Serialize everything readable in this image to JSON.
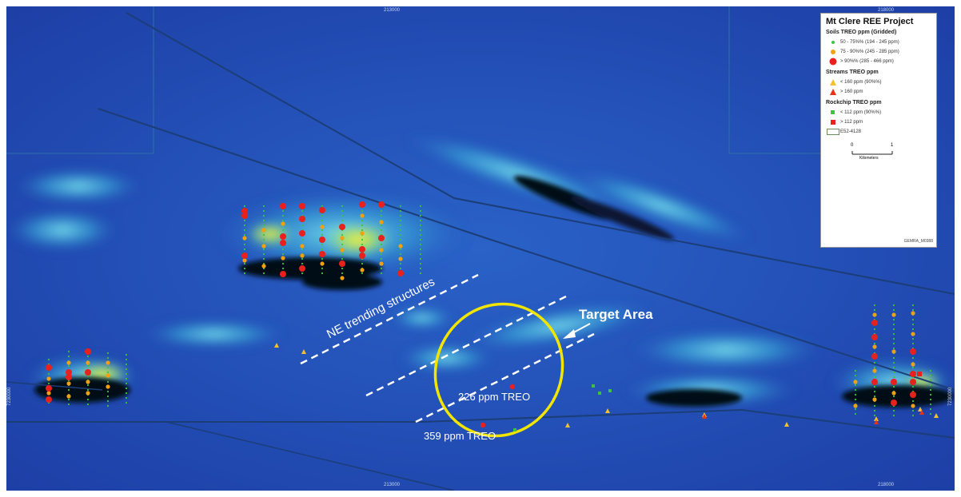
{
  "map": {
    "grid_ticks": {
      "top": [
        "213000",
        "218000"
      ],
      "bottom": [
        "213000",
        "218000"
      ],
      "left": "7230000",
      "right": "7230000"
    },
    "labels": {
      "structures": "NE trending structures",
      "target": "Target Area",
      "treo_226": "226 ppm TREO",
      "treo_359": "359 ppm TREO"
    },
    "colors": {
      "background": "#1e49b2",
      "target_ellipse": "#f2e600",
      "dashed_lines": "#ffffff",
      "soil_green": "#3cc43c",
      "soil_orange": "#f0a010",
      "soil_red": "#e8211c",
      "stream_yellow": "#f2c12e",
      "stream_red": "#e8321c",
      "rockchip_green": "#3cc43c",
      "rockchip_red": "#e8211c"
    }
  },
  "legend": {
    "title": "Mt Clere REE Project",
    "soils": {
      "heading": "Soils TREO ppm (Gridded)",
      "items": [
        {
          "label": "50 - 75%% (194 - 245 ppm)",
          "icon": "small-green-dot",
          "color": "#3cc43c"
        },
        {
          "label": "75 - 90%% (245 - 285 ppm)",
          "icon": "orange-dot",
          "color": "#f0a010"
        },
        {
          "label": "> 90%% (285 - 466 ppm)",
          "icon": "large-red-dot",
          "color": "#e8211c"
        }
      ]
    },
    "streams": {
      "heading": "Streams TREO ppm",
      "items": [
        {
          "label": "< 160 ppm (90%%)",
          "icon": "yellow-triangle",
          "color": "#f2c12e"
        },
        {
          "label": "> 160 ppm",
          "icon": "red-triangle",
          "color": "#e8321c"
        }
      ]
    },
    "rockchip": {
      "heading": "Rockchip TREO ppm",
      "items": [
        {
          "label": "< 112 ppm (90%%)",
          "icon": "green-square",
          "color": "#3cc43c"
        },
        {
          "label": "> 112 ppm",
          "icon": "red-square",
          "color": "#e8211c"
        },
        {
          "label": "E52-4128",
          "icon": "tenement-box",
          "color": "#6b8e5a"
        }
      ]
    },
    "scale": {
      "start": "0",
      "end": "1",
      "unit": "Kilometers"
    },
    "code": "GEMRA_M0388"
  }
}
